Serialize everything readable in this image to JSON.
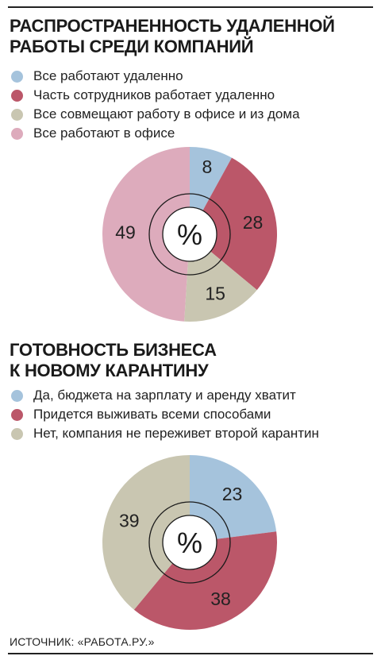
{
  "chart_data": [
    {
      "type": "pie",
      "title": "РАСПРОСТРАНЕННОСТЬ УДАЛЕННОЙ РАБОТЫ СРЕДИ КОМПАНИЙ",
      "title_lines": [
        "РАСПРОСТРАНЕННОСТЬ УДАЛЕННОЙ",
        "РАБОТЫ СРЕДИ КОМПАНИЙ"
      ],
      "center_label": "%",
      "categories": [
        "Все работают удаленно",
        "Часть сотрудников работает удаленно",
        "Все совмещают работу в офисе и из дома",
        "Все работают в офисе"
      ],
      "values": [
        8,
        28,
        15,
        49
      ],
      "colors": [
        "#a5c3dc",
        "#bb5769",
        "#c9c6b1",
        "#ddabbc"
      ],
      "legend_position": "top-left"
    },
    {
      "type": "pie",
      "title": "ГОТОВНОСТЬ БИЗНЕСА К НОВОМУ КАРАНТИНУ",
      "title_lines": [
        "ГОТОВНОСТЬ БИЗНЕСА",
        "К НОВОМУ КАРАНТИНУ"
      ],
      "center_label": "%",
      "categories": [
        "Да, бюджета на зарплату и аренду хватит",
        "Придется выживать всеми способами",
        "Нет, компания не переживет второй карантин"
      ],
      "values": [
        23,
        38,
        39
      ],
      "colors": [
        "#a5c3dc",
        "#bb5769",
        "#c9c6b1"
      ],
      "legend_position": "top-left"
    }
  ],
  "source": "ИСТОЧНИК: «РАБОТА.РУ.»"
}
